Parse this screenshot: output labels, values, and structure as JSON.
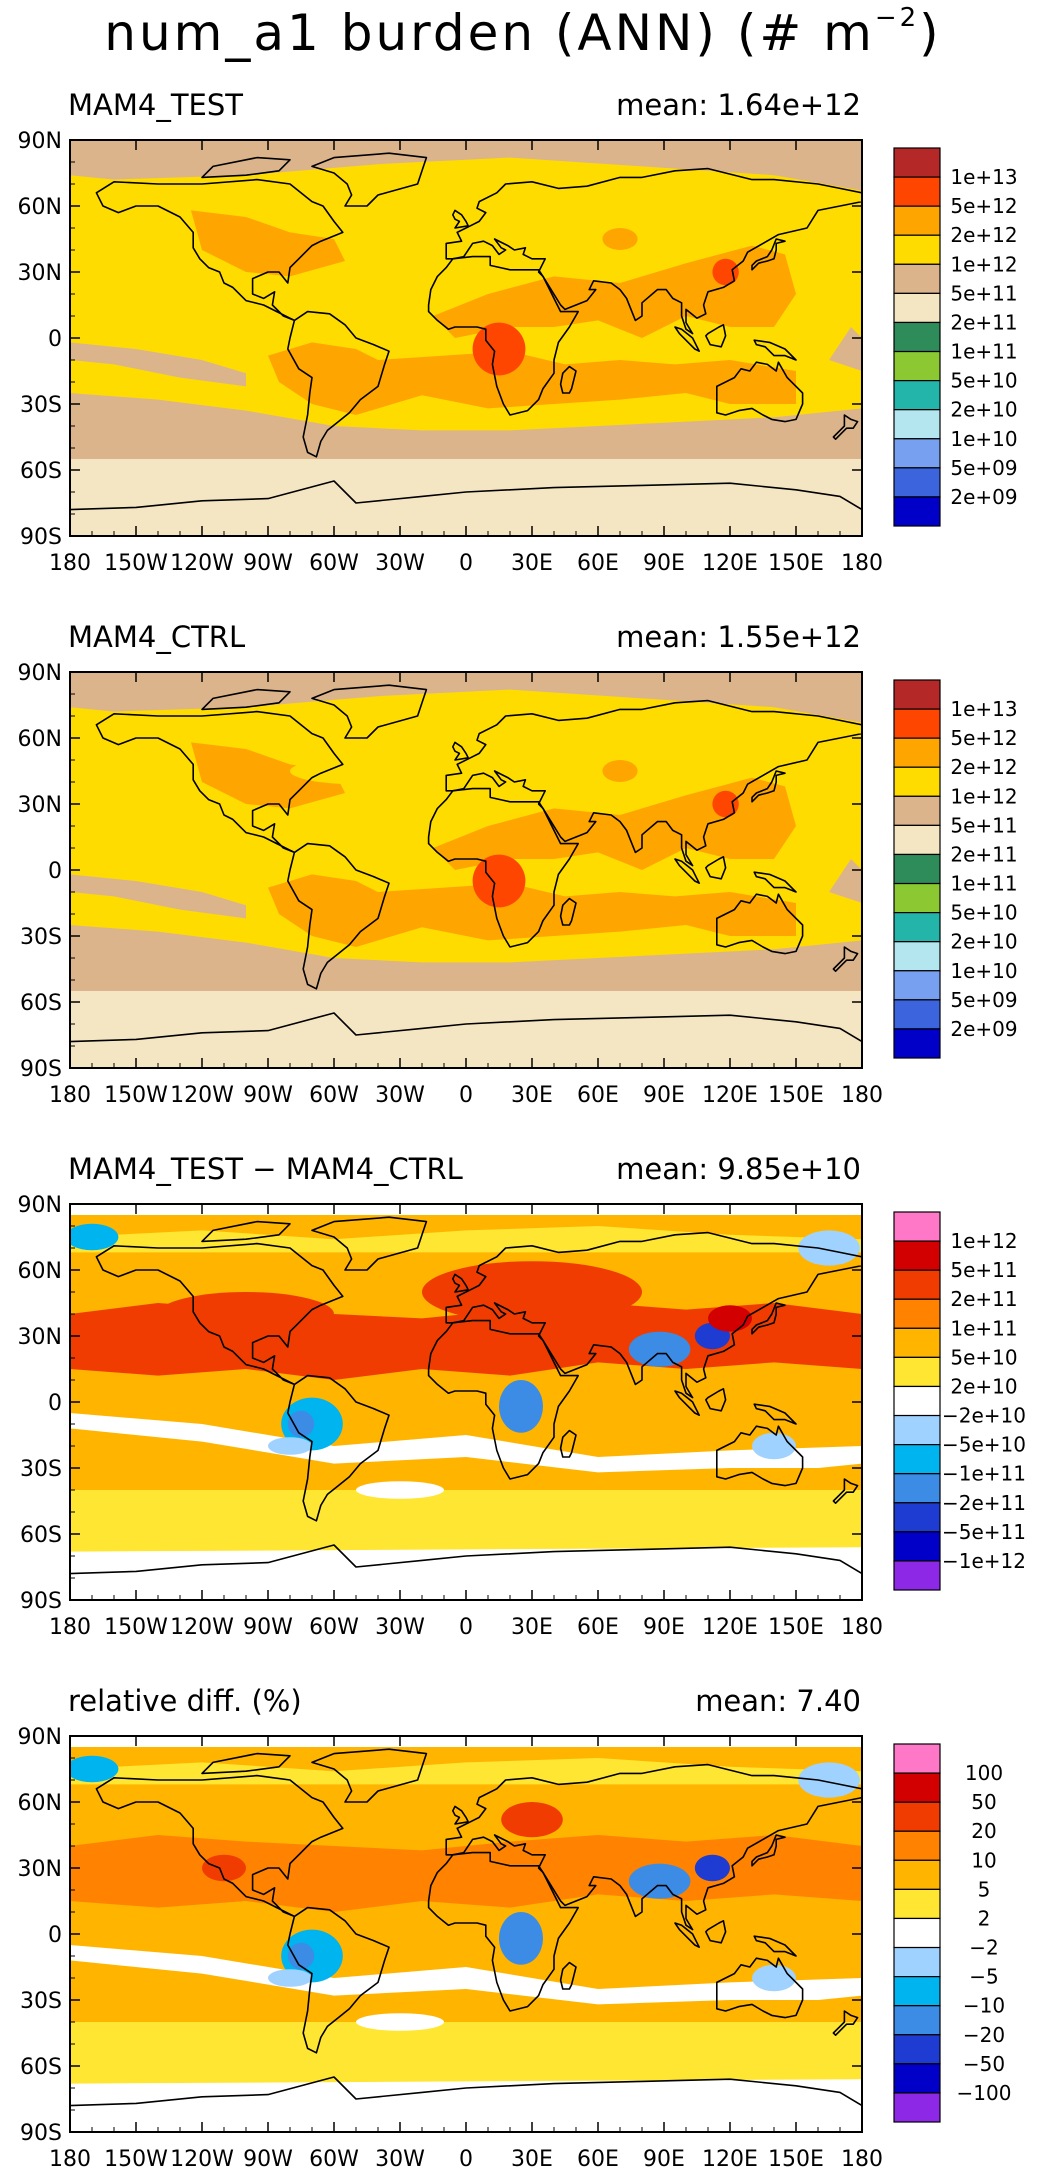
{
  "title": {
    "main": "num_a1 burden (ANN) (# m",
    "exp": "−2",
    "close": ")"
  },
  "colors": {
    "levels_abs": [
      "#0000c8",
      "#3c64dc",
      "#78a0f0",
      "#b4e6f0",
      "#23b4aa",
      "#8cc832",
      "#2d8c5a",
      "#f5e6c3",
      "#dcb48c",
      "#ffdc00",
      "#ffa500",
      "#ff4600",
      "#b42828"
    ],
    "levels_diff": [
      "#8c28e6",
      "#0000c8",
      "#1e3cd2",
      "#3c8ce6",
      "#00b4f0",
      "#a0d2ff",
      "#ffffff",
      "#ffe632",
      "#ffb400",
      "#ff8200",
      "#f03c00",
      "#d20000",
      "#ff78c8"
    ]
  },
  "axes": {
    "lon_ticks": [
      "180",
      "150W",
      "120W",
      "90W",
      "60W",
      "30W",
      "0",
      "30E",
      "60E",
      "90E",
      "120E",
      "150E",
      "180"
    ],
    "lat_ticks": [
      "90N",
      "60N",
      "30N",
      "0",
      "30S",
      "60S",
      "90S"
    ]
  },
  "panels": [
    {
      "title": "MAM4_TEST",
      "mean": "mean: 1.64e+12",
      "legend": "abs",
      "labels": [
        "1e+13",
        "5e+12",
        "2e+12",
        "1e+12",
        "5e+11",
        "2e+11",
        "1e+11",
        "5e+10",
        "2e+10",
        "1e+10",
        "5e+09",
        "2e+09"
      ]
    },
    {
      "title": "MAM4_CTRL",
      "mean": "mean: 1.55e+12",
      "legend": "abs",
      "labels": [
        "1e+13",
        "5e+12",
        "2e+12",
        "1e+12",
        "5e+11",
        "2e+11",
        "1e+11",
        "5e+10",
        "2e+10",
        "1e+10",
        "5e+09",
        "2e+09"
      ]
    },
    {
      "title": "MAM4_TEST − MAM4_CTRL",
      "mean": "mean: 9.85e+10",
      "legend": "diff",
      "labels": [
        "1e+12",
        "5e+11",
        "2e+11",
        "1e+11",
        "5e+10",
        "2e+10",
        "−2e+10",
        "−5e+10",
        "−1e+11",
        "−2e+11",
        "−5e+11",
        "−1e+12"
      ]
    },
    {
      "title": "relative diff. (%)",
      "mean": "mean:  7.40",
      "legend": "diff",
      "labels": [
        "100",
        "50",
        "20",
        "10",
        "5",
        "2",
        "−2",
        "−5",
        "−10",
        "−20",
        "−50",
        "−100"
      ]
    }
  ],
  "chart_data": [
    {
      "type": "heatmap",
      "title": "MAM4_TEST",
      "annotation": "mean: 1.64e+12",
      "xlim": [
        "180",
        "180"
      ],
      "ylim": [
        "90S",
        "90N"
      ],
      "levels": [
        2000000000.0,
        5000000000.0,
        10000000000.0,
        20000000000.0,
        50000000000.0,
        100000000000.0,
        200000000000.0,
        500000000000.0,
        1000000000000.0,
        2000000000000.0,
        5000000000000.0,
        10000000000000.0
      ]
    },
    {
      "type": "heatmap",
      "title": "MAM4_CTRL",
      "annotation": "mean: 1.55e+12",
      "xlim": [
        "180",
        "180"
      ],
      "ylim": [
        "90S",
        "90N"
      ],
      "levels": [
        2000000000.0,
        5000000000.0,
        10000000000.0,
        20000000000.0,
        50000000000.0,
        100000000000.0,
        200000000000.0,
        500000000000.0,
        1000000000000.0,
        2000000000000.0,
        5000000000000.0,
        10000000000000.0
      ]
    },
    {
      "type": "heatmap",
      "title": "MAM4_TEST − MAM4_CTRL",
      "annotation": "mean: 9.85e+10",
      "xlim": [
        "180",
        "180"
      ],
      "ylim": [
        "90S",
        "90N"
      ],
      "levels": [
        -1000000000000.0,
        -500000000000.0,
        -200000000000.0,
        -100000000000.0,
        -50000000000.0,
        -20000000000.0,
        20000000000.0,
        50000000000.0,
        100000000000.0,
        200000000000.0,
        500000000000.0,
        1000000000000.0
      ]
    },
    {
      "type": "heatmap",
      "title": "relative diff. (%)",
      "annotation": "mean:  7.40",
      "xlim": [
        "180",
        "180"
      ],
      "ylim": [
        "90S",
        "90N"
      ],
      "levels": [
        -100,
        -50,
        -20,
        -10,
        -5,
        -2,
        2,
        5,
        10,
        20,
        50,
        100
      ]
    }
  ]
}
